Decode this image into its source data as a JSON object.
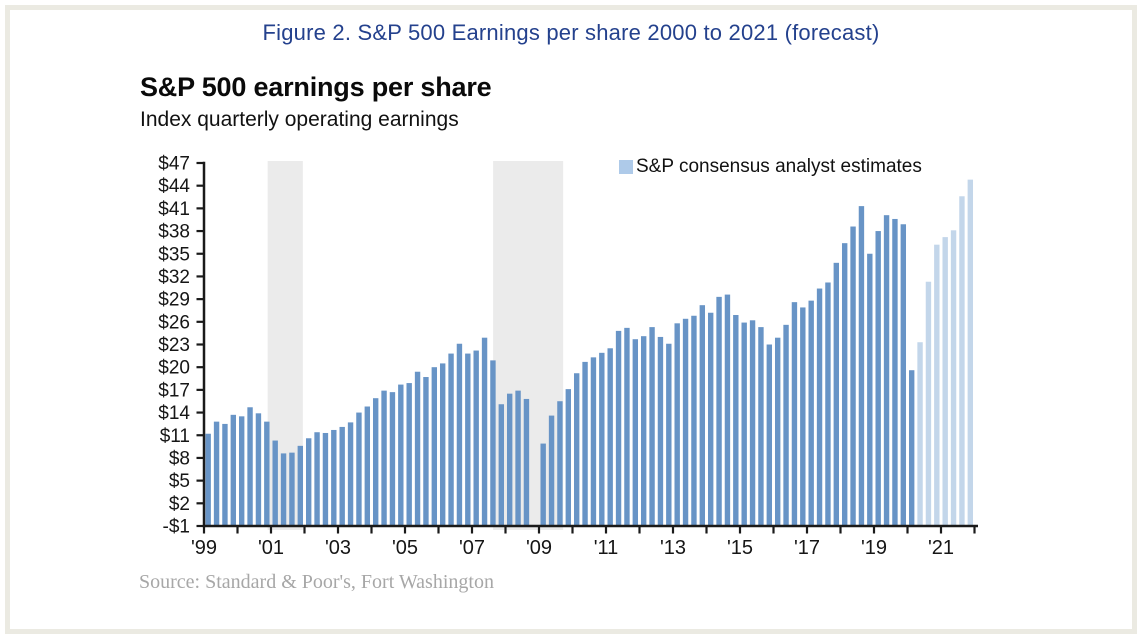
{
  "figure_title": "Figure 2. S&P 500 Earnings per share 2000 to 2021 (forecast)",
  "chart": {
    "title": "S&P 500 earnings per share",
    "subtitle": "Index quarterly operating earnings",
    "legend_label": "S&P consensus analyst estimates",
    "source": "Source: Standard & Poor's, Fort Washington"
  },
  "chart_data": {
    "type": "bar",
    "title": "S&P 500 earnings per share",
    "subtitle": "Index quarterly operating earnings",
    "frequency": "quarterly",
    "first_year": 1999,
    "ylim": [
      -1,
      47
    ],
    "y_ticks": [
      47,
      44,
      41,
      38,
      35,
      32,
      29,
      26,
      23,
      20,
      17,
      14,
      11,
      8,
      5,
      2,
      -1
    ],
    "y_tick_labels": [
      "$47",
      "$44",
      "$41",
      "$38",
      "$35",
      "$32",
      "$29",
      "$26",
      "$23",
      "$20",
      "$17",
      "$14",
      "$11",
      "$8",
      "$5",
      "$2",
      "-$1"
    ],
    "x_tick_first_year": 1999,
    "x_tick_last_year": 2022,
    "x_labels": [
      {
        "year": 1999,
        "text": "'99"
      },
      {
        "year": 2001,
        "text": "'01"
      },
      {
        "year": 2003,
        "text": "'03"
      },
      {
        "year": 2005,
        "text": "'05"
      },
      {
        "year": 2007,
        "text": "'07"
      },
      {
        "year": 2009,
        "text": "'09"
      },
      {
        "year": 2011,
        "text": "'11"
      },
      {
        "year": 2013,
        "text": "'13"
      },
      {
        "year": 2015,
        "text": "'15"
      },
      {
        "year": 2017,
        "text": "'17"
      },
      {
        "year": 2019,
        "text": "'19"
      },
      {
        "year": 2021,
        "text": "'21"
      }
    ],
    "values": [
      11.2,
      12.8,
      12.5,
      13.7,
      13.5,
      14.7,
      13.9,
      12.8,
      10.3,
      8.6,
      8.7,
      9.6,
      10.6,
      11.4,
      11.3,
      11.7,
      12.1,
      12.7,
      14.0,
      14.8,
      15.9,
      16.9,
      16.7,
      17.7,
      17.9,
      19.4,
      18.7,
      20.0,
      20.5,
      21.8,
      23.1,
      21.8,
      22.2,
      23.9,
      20.9,
      15.1,
      16.5,
      16.9,
      15.8,
      0,
      9.9,
      13.6,
      15.5,
      17.1,
      19.2,
      20.7,
      21.3,
      21.9,
      22.5,
      24.8,
      25.2,
      23.7,
      24.1,
      25.3,
      24.0,
      23.1,
      25.8,
      26.4,
      26.8,
      28.2,
      27.2,
      29.3,
      29.6,
      26.9,
      25.9,
      26.2,
      25.3,
      23.0,
      23.9,
      25.6,
      28.6,
      27.9,
      28.8,
      30.4,
      31.2,
      33.8,
      36.4,
      38.6,
      41.3,
      35.0,
      38.0,
      40.1,
      39.6,
      38.9,
      19.6,
      23.3,
      31.3,
      36.2,
      37.2,
      38.1,
      42.6,
      44.8
    ],
    "estimate_start_index": 85,
    "estimate_legend": "S&P consensus analyst estimates",
    "recession_bands": [
      {
        "from_year": 2000.9,
        "to_year": 2001.95
      },
      {
        "from_year": 2007.63,
        "to_year": 2009.72
      }
    ],
    "legend_position": "top-right-inside",
    "grid": false,
    "colors": {
      "actual_bar": "#6894c6",
      "estimate_bar": "#c3d6ea",
      "legend_swatch": "#aecae9",
      "recession_band": "#ebebeb",
      "axis": "#1a1a1a",
      "figure_title": "#24418d",
      "source_text": "#a7a7a7"
    }
  }
}
